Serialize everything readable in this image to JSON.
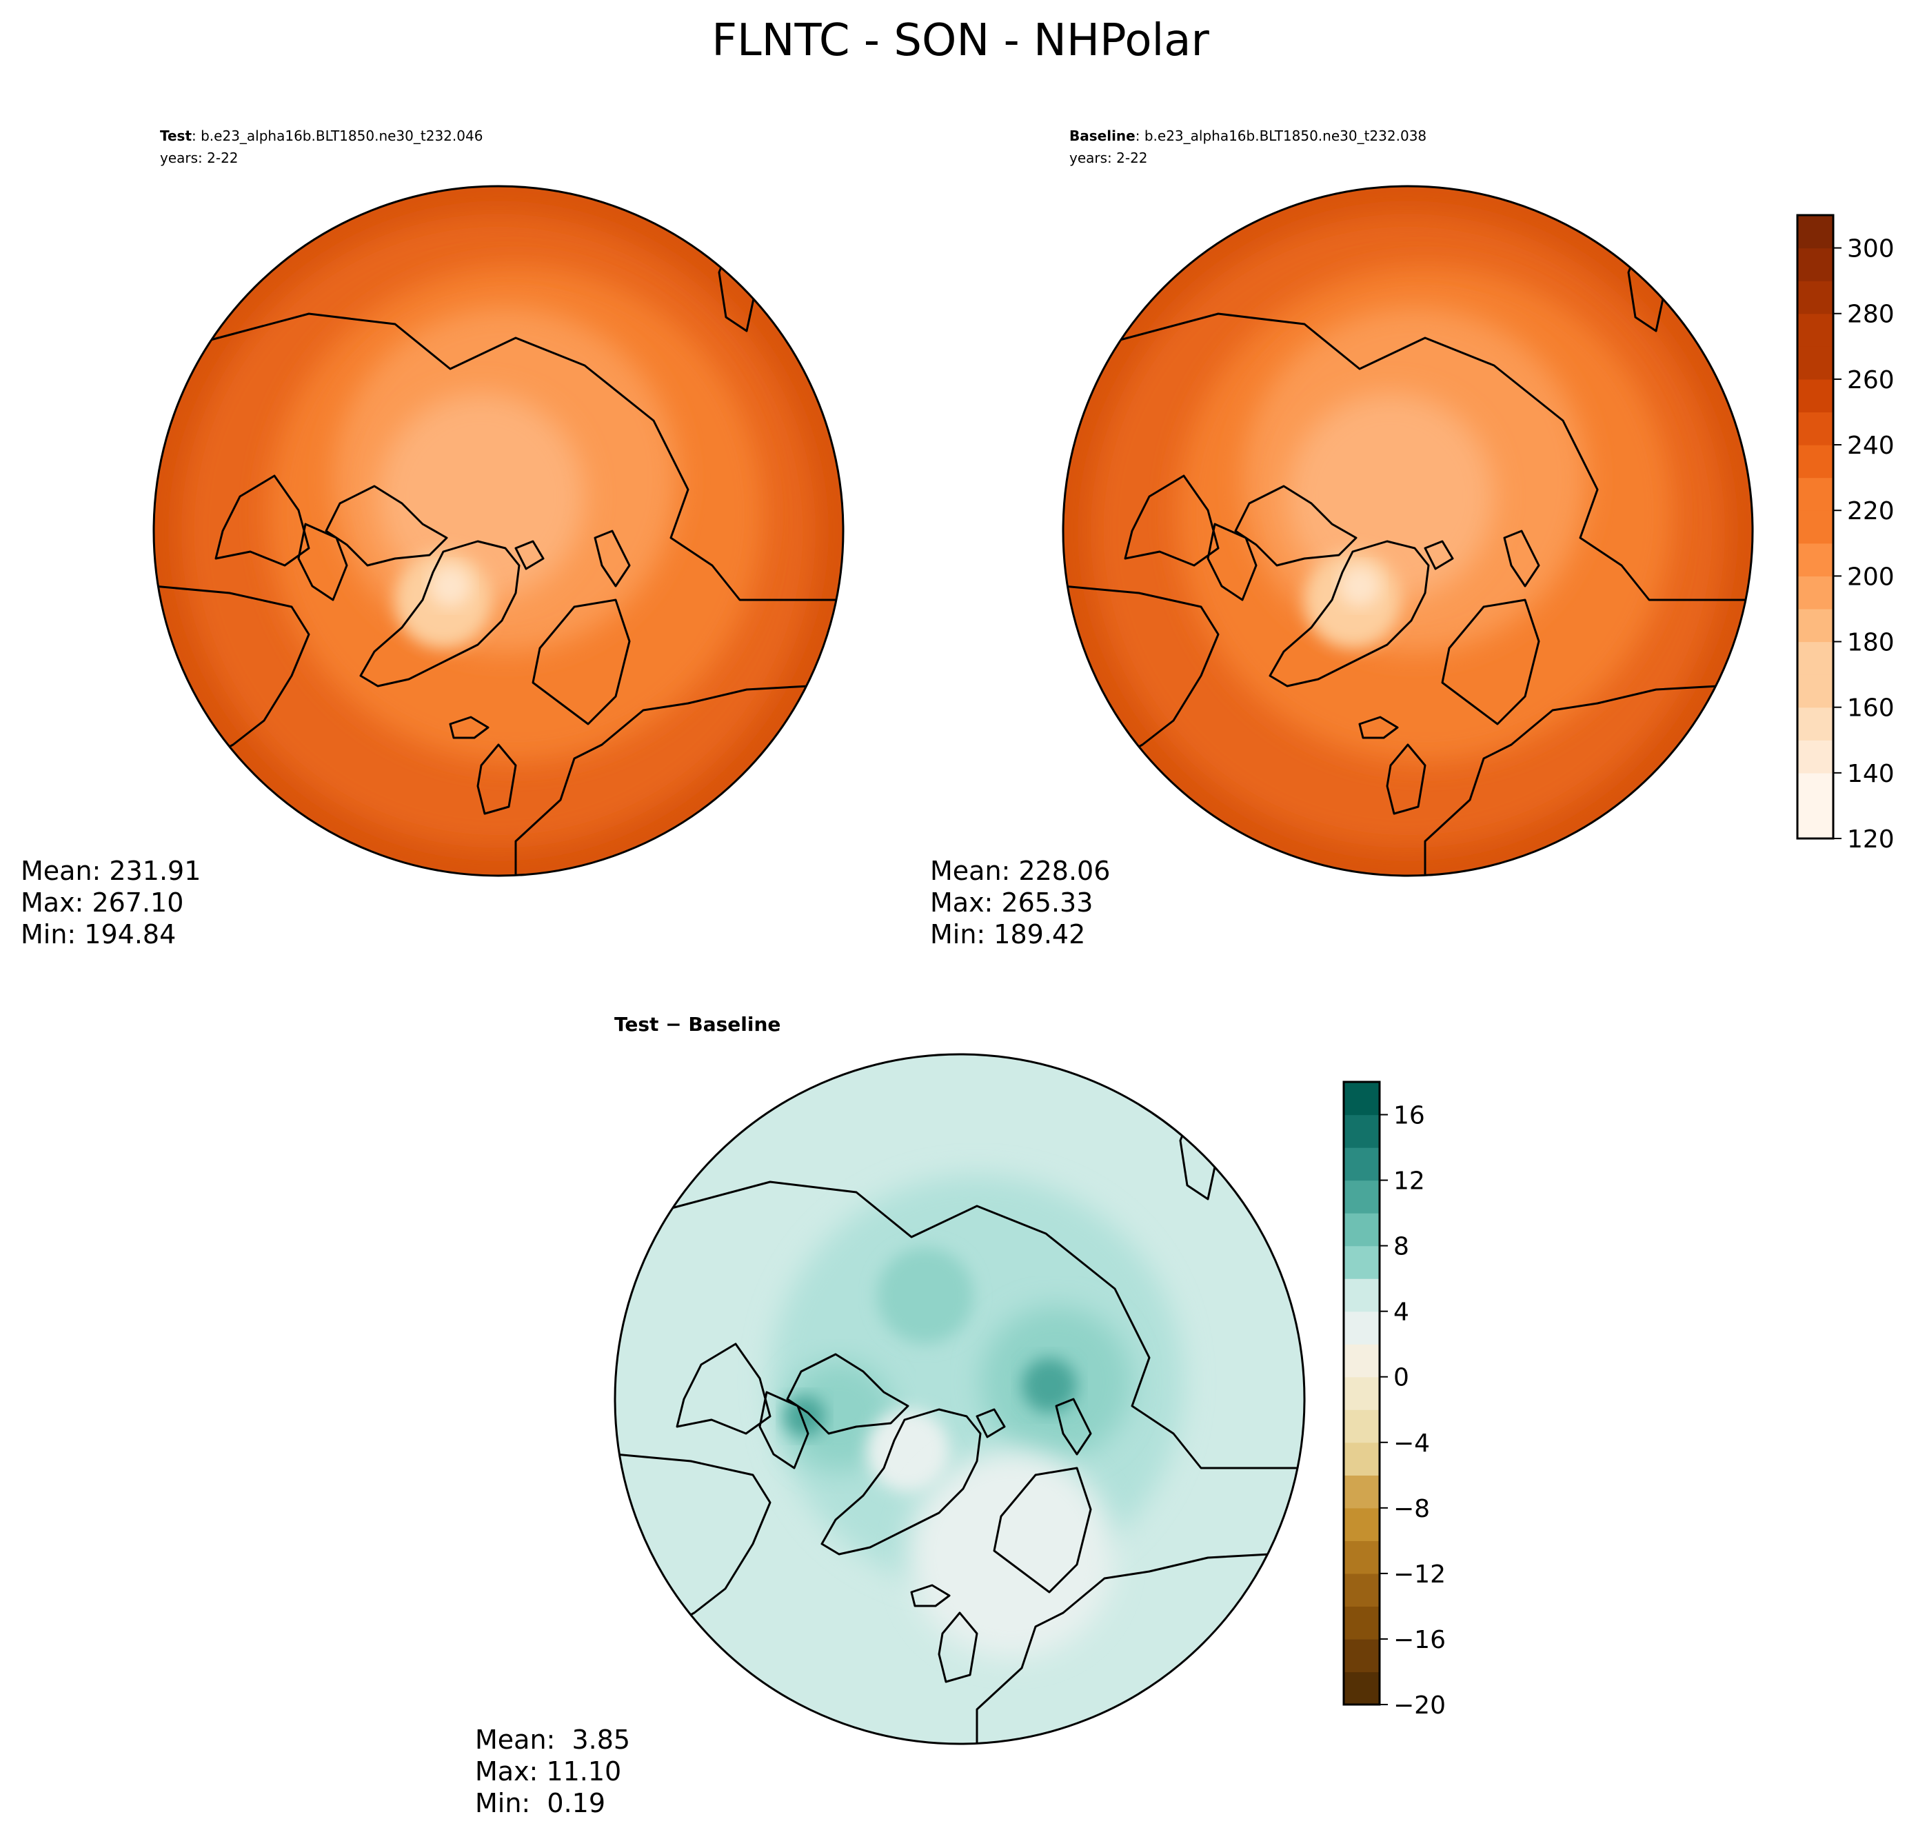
{
  "figure": {
    "title": "FLNTC - SON - NHPolar"
  },
  "panels": {
    "test": {
      "label_bold": "Test",
      "label_rest": ": b.e23_alpha16b.BLT1850.ne30_t232.046",
      "years": "years: 2-22",
      "stats": {
        "mean": "Mean: 231.91",
        "max": "Max: 267.10",
        "min": "Min: 194.84"
      }
    },
    "baseline": {
      "label_bold": "Baseline",
      "label_rest": ": b.e23_alpha16b.BLT1850.ne30_t232.038",
      "years": "years: 2-22",
      "stats": {
        "mean": "Mean: 228.06",
        "max": "Max: 265.33",
        "min": "Min: 189.42"
      }
    },
    "diff": {
      "label_bold": "Test − Baseline",
      "stats": {
        "mean": "Mean:  3.85",
        "max": "Max: 11.10",
        "min": "Min:  0.19"
      }
    }
  },
  "colorbars": {
    "absolute": {
      "vmin": 120,
      "vmax": 310,
      "step": 10,
      "ticks": [
        "120",
        "140",
        "160",
        "180",
        "200",
        "220",
        "240",
        "260",
        "280",
        "300"
      ],
      "tick_values": [
        120,
        140,
        160,
        180,
        200,
        220,
        240,
        260,
        280,
        300
      ],
      "colors": [
        "#fff5eb",
        "#fee9d4",
        "#fdddbb",
        "#fdcd9e",
        "#fdba7e",
        "#fda45f",
        "#fc9044",
        "#f67b2b",
        "#ed6618",
        "#e0550e",
        "#cf4505",
        "#b83b03",
        "#a53302",
        "#922c03",
        "#7f2704"
      ]
    },
    "difference": {
      "vmin": -20,
      "vmax": 18,
      "step": 2,
      "ticks": [
        "−20",
        "−16",
        "−12",
        "−8",
        "−4",
        "0",
        "4",
        "8",
        "12",
        "16"
      ],
      "tick_values": [
        -20,
        -16,
        -12,
        -8,
        -4,
        0,
        4,
        8,
        12,
        16
      ],
      "colors": [
        "#543005",
        "#6d3e08",
        "#85500b",
        "#9a6214",
        "#b0781f",
        "#c5902f",
        "#d1a54f",
        "#dcbb70",
        "#e6cf91",
        "#eddeaf",
        "#f2e8c9",
        "#f5efe0",
        "#e8f1ef",
        "#cfebe6",
        "#b1e1da",
        "#90d3c8",
        "#6ec0b3",
        "#4aa69a",
        "#2b8b82",
        "#137269",
        "#015d53",
        "#003c30"
      ]
    }
  },
  "map_colors": {
    "abs_outer": "#d9540c",
    "abs_band": "#e8661a",
    "abs_mid": "#f57f2d",
    "abs_inner": "#fb9a52",
    "abs_center": "#fdb178",
    "abs_greenland_low": "#fdcf9f",
    "abs_greenland_min": "#fee5cb",
    "diff_base": "#cfebe6",
    "diff_mid": "#b1e1da",
    "diff_high": "#90d3c8",
    "diff_peak": "#4aa69a",
    "diff_low": "#e8f1ef",
    "coastline": "#000000"
  }
}
